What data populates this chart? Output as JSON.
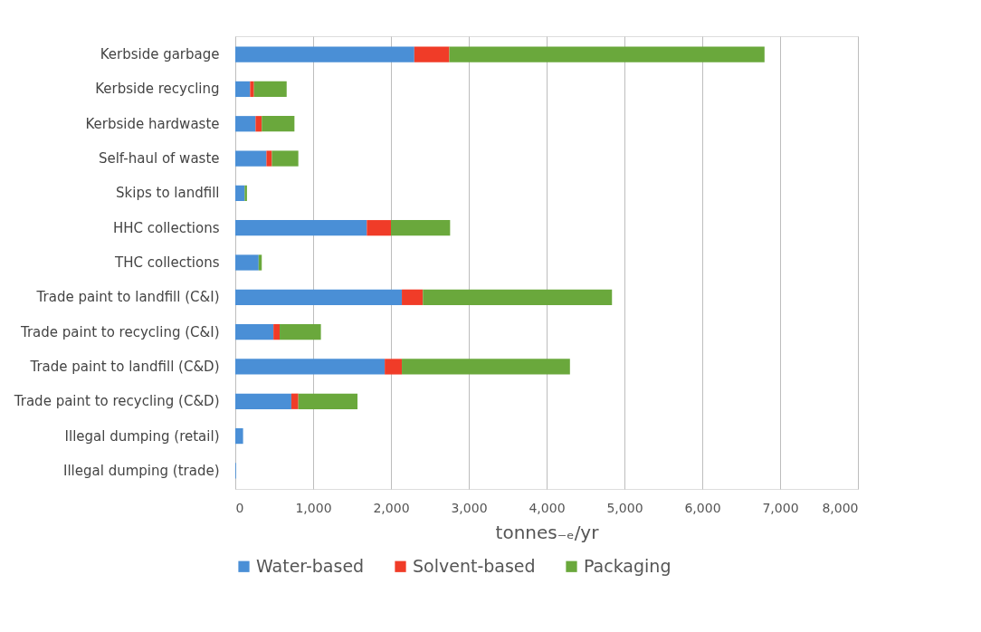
{
  "chart_data": {
    "type": "bar",
    "orientation": "horizontal",
    "stacked": true,
    "categories": [
      "Kerbside garbage",
      "Kerbside recycling",
      "Kerbside hardwaste",
      "Self-haul of waste",
      "Skips to landfill",
      "HHC collections",
      "THC collections",
      "Trade paint to landfill (C&I)",
      "Trade paint to recycling  (C&I)",
      "Trade paint to landfill (C&D)",
      "Trade paint to recycling  (C&D)",
      "Illegal dumping (retail)",
      "Illegal dumping (trade)"
    ],
    "series": [
      {
        "name": "Water-based",
        "color": "#4a8fd6",
        "values": [
          2300,
          190,
          260,
          400,
          120,
          1690,
          300,
          2140,
          490,
          1920,
          720,
          100,
          10
        ]
      },
      {
        "name": "Solvent-based",
        "color": "#f03c28",
        "values": [
          450,
          50,
          80,
          70,
          0,
          310,
          0,
          270,
          80,
          220,
          90,
          0,
          0
        ]
      },
      {
        "name": "Packaging",
        "color": "#6aa83c",
        "values": [
          4050,
          420,
          420,
          340,
          30,
          760,
          40,
          2430,
          530,
          2160,
          760,
          0,
          0
        ]
      }
    ],
    "xlabel": "tonnes₋ₑ/yr",
    "xlim": [
      0,
      8000
    ],
    "xticks": [
      0,
      {
        "value": 1000,
        "label": "1,000"
      },
      {
        "value": 2000,
        "label": "2,000"
      },
      {
        "value": 3000,
        "label": "3,000"
      },
      {
        "value": 4000,
        "label": "4,000"
      },
      {
        "value": 5000,
        "label": "5,000"
      },
      {
        "value": 6000,
        "label": "6,000"
      },
      {
        "value": 7000,
        "label": "7,000"
      },
      {
        "value": 8000,
        "label": "8,000"
      }
    ],
    "grid": "x",
    "legend": "bottom"
  }
}
